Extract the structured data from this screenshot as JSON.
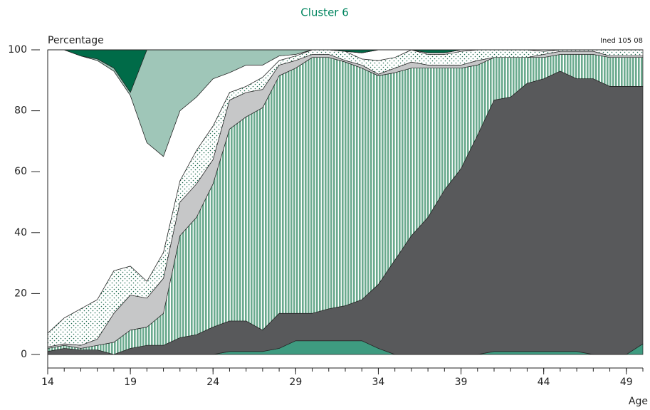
{
  "chart_data": {
    "type": "stacked-area",
    "title": "Cluster 6",
    "y_label": "Percentage",
    "x_label": "Age",
    "annotation": "Ined 105 08",
    "x": [
      14,
      15,
      16,
      17,
      18,
      19,
      20,
      21,
      22,
      23,
      24,
      25,
      26,
      27,
      28,
      29,
      30,
      31,
      32,
      33,
      34,
      35,
      36,
      37,
      38,
      39,
      40,
      41,
      42,
      43,
      44,
      45,
      46,
      47,
      48,
      49,
      50
    ],
    "xlim": [
      14,
      50
    ],
    "xticks": [
      14,
      19,
      24,
      29,
      34,
      39,
      44,
      49
    ],
    "ylim": [
      0,
      100
    ],
    "yticks": [
      0,
      20,
      40,
      60,
      80,
      100
    ],
    "series": [
      {
        "color": "#3e9b80",
        "values": [
          0,
          0,
          0,
          0,
          0,
          0,
          0,
          0,
          0,
          0,
          0,
          1,
          1,
          1,
          2,
          4.5,
          4.5,
          4.5,
          4.5,
          4.5,
          2,
          0,
          0,
          0,
          0,
          0,
          0,
          1,
          1,
          1,
          1,
          1,
          1,
          0,
          0,
          0,
          3.5
        ]
      },
      {
        "color": "#58595b",
        "values": [
          1,
          2,
          1.5,
          1.5,
          0,
          2,
          3,
          3,
          5.5,
          6.5,
          9,
          10,
          10,
          7,
          11.5,
          9,
          9,
          10.5,
          11.5,
          13.5,
          21,
          31,
          39,
          45,
          54,
          61,
          72,
          82.5,
          83.5,
          88,
          89.5,
          92,
          89.5,
          90.5,
          88,
          88,
          84.5
        ]
      },
      {
        "color": "#6aaa8e",
        "pattern": "vertical-stripes",
        "values": [
          1,
          1,
          0.5,
          1.5,
          4,
          6,
          6,
          10.5,
          33.5,
          38.5,
          47,
          63,
          67,
          73,
          78,
          80.5,
          84,
          82.5,
          80,
          76,
          68.5,
          61.5,
          55,
          49,
          40,
          33,
          23,
          14,
          13,
          8.5,
          7,
          5.5,
          8,
          8,
          9.5,
          9.5,
          9.5
        ]
      },
      {
        "color": "#c6c7c8",
        "values": [
          0.5,
          0.5,
          1,
          2,
          9.5,
          11.5,
          9.5,
          11.5,
          11,
          11,
          8,
          9.5,
          8,
          6,
          3.5,
          2.5,
          1,
          1,
          0.5,
          1,
          0.5,
          1.5,
          2,
          1,
          1,
          1,
          1.5,
          0,
          0,
          0,
          1,
          1,
          1,
          1,
          0.5,
          0.5,
          0.5
        ]
      },
      {
        "color": "#1e6b4f",
        "pattern": "dots",
        "values": [
          4.5,
          8.5,
          12,
          13,
          14,
          9.5,
          5.5,
          8.5,
          7,
          11,
          11,
          2.5,
          2,
          4,
          1.5,
          1.5,
          1.5,
          1.5,
          3,
          2,
          4.5,
          3.5,
          4,
          3.5,
          3.5,
          4.5,
          3.5,
          2.5,
          2.5,
          2.5,
          1,
          0.5,
          0.5,
          0.5,
          2,
          2,
          2
        ]
      },
      {
        "color": "#ffffff",
        "values": [
          93,
          88,
          83,
          78.5,
          65.5,
          56,
          45.5,
          31.5,
          23,
          17.5,
          15.5,
          6.5,
          7,
          4,
          1.5,
          0.5,
          0,
          0,
          0,
          2,
          3.5,
          2.5,
          0,
          0.5,
          0.5,
          0.5,
          0,
          0,
          0,
          0,
          0.5,
          0,
          0,
          0,
          0,
          0,
          0
        ]
      },
      {
        "color": "#9fc6b8",
        "values": [
          0,
          0,
          0,
          0.5,
          1,
          1,
          30.5,
          35,
          20,
          15.5,
          9.5,
          7.5,
          5,
          5,
          2,
          1.5,
          0,
          0,
          0,
          0,
          0,
          0,
          0,
          0,
          0,
          0,
          0,
          0,
          0,
          0,
          0,
          0,
          0,
          0,
          0,
          0,
          0
        ]
      },
      {
        "color": "#006b48",
        "values": [
          0,
          0,
          2,
          3,
          6,
          14,
          0,
          0,
          0,
          0,
          0,
          0,
          0,
          0,
          0,
          0,
          0,
          0,
          0.5,
          1,
          0,
          0,
          0,
          1,
          1,
          0,
          0,
          0,
          0,
          0,
          0,
          0,
          0,
          0,
          0,
          0,
          0
        ]
      }
    ]
  }
}
